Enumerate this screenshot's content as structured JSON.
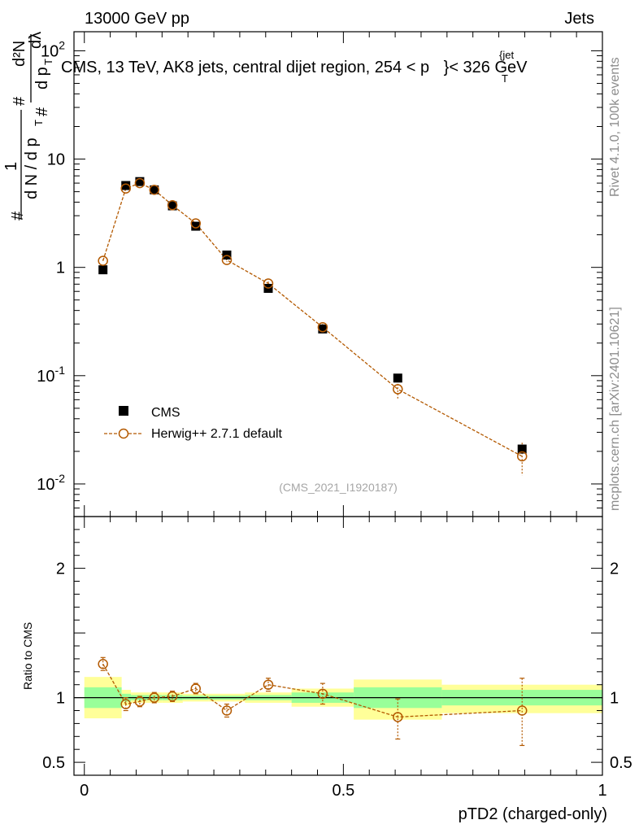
{
  "header": {
    "left": "13000 GeV pp",
    "right": "Jets"
  },
  "side_labels": {
    "rivet": "Rivet 4.1.0,  100k events",
    "mcplots": "mcplots.cern.ch [arXiv:2401.10621]"
  },
  "chart_data": [
    {
      "type": "scatter",
      "title": "CMS, 13 TeV, AK8 jets, central dijet region, 254 < p_T^{jet} < 326 GeV",
      "title_parts": {
        "prefix": "CMS, 13 TeV, AK8 jets, central dijet region, 254 <",
        "p": "p",
        "sub": "T",
        "sup": "{jet",
        "suffix": "}< 326 GeV"
      },
      "ylabel_parts": {
        "hash1": "#",
        "one": "1",
        "dn": "d N / d p",
        "t1": "T",
        "hash2": "#",
        "d2n": "d²N",
        "dp": "d p",
        "t2": "T",
        "dl": "dλ",
        "hash3": "#"
      },
      "yscale": "log",
      "ylim": [
        0.005,
        150
      ],
      "xlim": [
        -0.02,
        1.0
      ],
      "y_ticks": [
        {
          "value": 0.01,
          "base": "10",
          "exp": "-2"
        },
        {
          "value": 0.1,
          "base": "10",
          "exp": "-1"
        },
        {
          "value": 1,
          "base": "1",
          "exp": ""
        },
        {
          "value": 10,
          "base": "10",
          "exp": ""
        },
        {
          "value": 100,
          "base": "10",
          "exp": "2"
        }
      ],
      "watermark": "(CMS_2021_I1920187)",
      "legend_position": "lower-left",
      "series": [
        {
          "name": "CMS",
          "marker": "filled-square",
          "color": "#000000",
          "x": [
            0.036,
            0.08,
            0.107,
            0.135,
            0.17,
            0.215,
            0.275,
            0.355,
            0.46,
            0.605,
            0.845
          ],
          "y": [
            0.95,
            5.7,
            6.2,
            5.2,
            3.7,
            2.4,
            1.3,
            0.64,
            0.27,
            0.095,
            0.021
          ]
        },
        {
          "name": "Herwig++ 2.7.1 default",
          "marker": "open-circle",
          "color": "#b35900",
          "x": [
            0.036,
            0.08,
            0.107,
            0.135,
            0.17,
            0.215,
            0.275,
            0.355,
            0.46,
            0.605,
            0.845
          ],
          "y": [
            1.15,
            5.35,
            6.0,
            5.2,
            3.75,
            2.55,
            1.17,
            0.71,
            0.28,
            0.075,
            0.018
          ],
          "yerr_lo": [
            0.04,
            0.15,
            0.15,
            0.15,
            0.1,
            0.08,
            0.05,
            0.03,
            0.02,
            0.015,
            0.006
          ],
          "yerr_hi": [
            0.04,
            0.15,
            0.15,
            0.15,
            0.1,
            0.08,
            0.05,
            0.03,
            0.02,
            0.015,
            0.006
          ]
        }
      ]
    },
    {
      "type": "scatter",
      "ylabel": "Ratio to CMS",
      "xlabel": "pTD2 (charged-only)",
      "ylim": [
        0.4,
        2.4
      ],
      "xlim": [
        -0.02,
        1.0
      ],
      "y_tick_labels": [
        {
          "value": 0.5,
          "label": "0.5"
        },
        {
          "value": 1,
          "label": "1"
        },
        {
          "value": 2,
          "label": "2"
        }
      ],
      "x_tick_labels": [
        {
          "value": 0,
          "label": "0"
        },
        {
          "value": 0.5,
          "label": "0.5"
        },
        {
          "value": 1,
          "label": "1"
        }
      ],
      "bins": [
        {
          "lo": 0.0,
          "hi": 0.072,
          "inner": [
            0.92,
            1.08
          ],
          "outer": [
            0.84,
            1.16
          ]
        },
        {
          "lo": 0.072,
          "hi": 0.09,
          "inner": [
            0.97,
            1.03
          ],
          "outer": [
            0.94,
            1.06
          ]
        },
        {
          "lo": 0.09,
          "hi": 0.125,
          "inner": [
            0.98,
            1.02
          ],
          "outer": [
            0.96,
            1.04
          ]
        },
        {
          "lo": 0.125,
          "hi": 0.15,
          "inner": [
            0.98,
            1.02
          ],
          "outer": [
            0.96,
            1.04
          ]
        },
        {
          "lo": 0.15,
          "hi": 0.19,
          "inner": [
            0.98,
            1.02
          ],
          "outer": [
            0.96,
            1.04
          ]
        },
        {
          "lo": 0.19,
          "hi": 0.24,
          "inner": [
            0.985,
            1.015
          ],
          "outer": [
            0.97,
            1.03
          ]
        },
        {
          "lo": 0.24,
          "hi": 0.31,
          "inner": [
            0.985,
            1.015
          ],
          "outer": [
            0.97,
            1.03
          ]
        },
        {
          "lo": 0.31,
          "hi": 0.4,
          "inner": [
            0.98,
            1.02
          ],
          "outer": [
            0.96,
            1.04
          ]
        },
        {
          "lo": 0.4,
          "hi": 0.52,
          "inner": [
            0.96,
            1.04
          ],
          "outer": [
            0.93,
            1.07
          ]
        },
        {
          "lo": 0.52,
          "hi": 0.69,
          "inner": [
            0.92,
            1.08
          ],
          "outer": [
            0.83,
            1.14
          ]
        },
        {
          "lo": 0.69,
          "hi": 1.0,
          "inner": [
            0.94,
            1.06
          ],
          "outer": [
            0.88,
            1.1
          ]
        }
      ],
      "series": [
        {
          "name": "Herwig++ 2.7.1 default",
          "color": "#b35900",
          "x": [
            0.036,
            0.08,
            0.107,
            0.135,
            0.17,
            0.215,
            0.275,
            0.355,
            0.46,
            0.605,
            0.845
          ],
          "y": [
            1.26,
            0.95,
            0.97,
            1.0,
            1.01,
            1.07,
            0.9,
            1.1,
            1.03,
            0.85,
            0.9
          ],
          "yerr_lo": [
            0.05,
            0.05,
            0.04,
            0.04,
            0.04,
            0.04,
            0.05,
            0.05,
            0.08,
            0.17,
            0.27
          ],
          "yerr_hi": [
            0.05,
            0.05,
            0.04,
            0.04,
            0.04,
            0.04,
            0.05,
            0.05,
            0.08,
            0.14,
            0.25
          ]
        }
      ]
    }
  ]
}
